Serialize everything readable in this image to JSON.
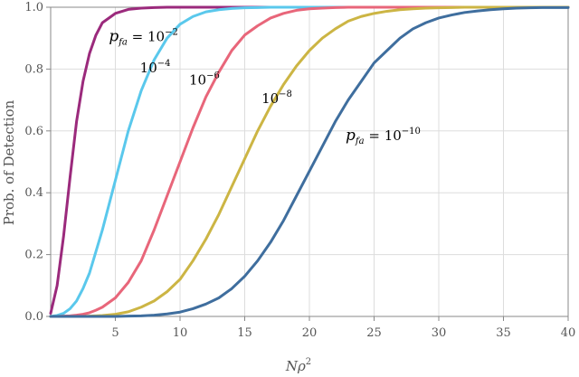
{
  "chart_data": {
    "type": "line",
    "title": "",
    "xlabel": "Nρ",
    "xlabel_sup": "2",
    "ylabel": "Prob. of Detection",
    "xlim": [
      0,
      40
    ],
    "ylim": [
      0,
      1.0
    ],
    "x_ticks": [
      "5",
      "10",
      "15",
      "20",
      "25",
      "30",
      "35",
      "40"
    ],
    "y_ticks": [
      "0.0",
      "0.2",
      "0.4",
      "0.6",
      "0.8",
      "1.0"
    ],
    "grid": true,
    "x": [
      0,
      0.5,
      1,
      1.5,
      2,
      2.5,
      3,
      3.5,
      4,
      5,
      6,
      7,
      8,
      9,
      10,
      11,
      12,
      13,
      14,
      15,
      16,
      17,
      18,
      19,
      20,
      21,
      22,
      23,
      24,
      25,
      26,
      27,
      28,
      29,
      30,
      31,
      32,
      33,
      34,
      35,
      36,
      37,
      38,
      39,
      40
    ],
    "series": [
      {
        "color": "#9b2a7c",
        "values": [
          0.01,
          0.1,
          0.26,
          0.45,
          0.63,
          0.76,
          0.85,
          0.91,
          0.95,
          0.98,
          0.993,
          0.997,
          0.999,
          1.0,
          1.0,
          1.0,
          1.0,
          1.0,
          1.0,
          1.0,
          1.0,
          1.0,
          1.0,
          1.0,
          1.0,
          1.0,
          1.0,
          1.0,
          1.0,
          1.0,
          1.0,
          1.0,
          1.0,
          1.0,
          1.0,
          1.0,
          1.0,
          1.0,
          1.0,
          1.0,
          1.0,
          1.0,
          1.0,
          1.0,
          1.0
        ]
      },
      {
        "color": "#5ac8ec",
        "values": [
          0.0001,
          0.003,
          0.01,
          0.025,
          0.05,
          0.09,
          0.14,
          0.21,
          0.28,
          0.44,
          0.6,
          0.73,
          0.83,
          0.9,
          0.945,
          0.97,
          0.985,
          0.992,
          0.996,
          0.998,
          0.999,
          1.0,
          1.0,
          1.0,
          1.0,
          1.0,
          1.0,
          1.0,
          1.0,
          1.0,
          1.0,
          1.0,
          1.0,
          1.0,
          1.0,
          1.0,
          1.0,
          1.0,
          1.0,
          1.0,
          1.0,
          1.0,
          1.0,
          1.0,
          1.0
        ]
      },
      {
        "color": "#e8667a",
        "values": [
          0.0,
          0.0,
          0.001,
          0.002,
          0.004,
          0.007,
          0.012,
          0.02,
          0.03,
          0.06,
          0.11,
          0.18,
          0.28,
          0.39,
          0.5,
          0.61,
          0.71,
          0.79,
          0.86,
          0.91,
          0.94,
          0.965,
          0.98,
          0.99,
          0.995,
          0.997,
          0.999,
          1.0,
          1.0,
          1.0,
          1.0,
          1.0,
          1.0,
          1.0,
          1.0,
          1.0,
          1.0,
          1.0,
          1.0,
          1.0,
          1.0,
          1.0,
          1.0,
          1.0,
          1.0
        ]
      },
      {
        "color": "#ccb544",
        "values": [
          0.0,
          0.0,
          0.0,
          0.0,
          0.0,
          0.0,
          0.001,
          0.002,
          0.003,
          0.007,
          0.015,
          0.03,
          0.05,
          0.08,
          0.12,
          0.18,
          0.25,
          0.33,
          0.42,
          0.51,
          0.6,
          0.68,
          0.75,
          0.81,
          0.86,
          0.9,
          0.93,
          0.955,
          0.97,
          0.98,
          0.987,
          0.992,
          0.995,
          0.997,
          0.998,
          0.999,
          1.0,
          1.0,
          1.0,
          1.0,
          1.0,
          1.0,
          1.0,
          1.0,
          1.0
        ]
      },
      {
        "color": "#3f6e9e",
        "values": [
          0.0,
          0.0,
          0.0,
          0.0,
          0.0,
          0.0,
          0.0,
          0.0,
          0.0,
          0.0,
          0.001,
          0.002,
          0.004,
          0.008,
          0.014,
          0.025,
          0.04,
          0.06,
          0.09,
          0.13,
          0.18,
          0.24,
          0.31,
          0.39,
          0.47,
          0.55,
          0.63,
          0.7,
          0.76,
          0.82,
          0.86,
          0.9,
          0.93,
          0.95,
          0.965,
          0.975,
          0.983,
          0.988,
          0.992,
          0.995,
          0.997,
          0.998,
          0.999,
          0.999,
          0.999
        ]
      }
    ],
    "annotations": [
      {
        "base": "p",
        "sub": "fa",
        "eq": " = 10",
        "exp": "−2",
        "at": [
          4.5,
          0.89
        ],
        "color": "#000000"
      },
      {
        "base": "",
        "sub": "",
        "eq": "10",
        "exp": "−4",
        "at": [
          6.9,
          0.79
        ],
        "color": "#000000"
      },
      {
        "base": "",
        "sub": "",
        "eq": "10",
        "exp": "−6",
        "at": [
          10.7,
          0.75
        ],
        "color": "#000000"
      },
      {
        "base": "",
        "sub": "",
        "eq": "10",
        "exp": "−8",
        "at": [
          16.3,
          0.69
        ],
        "color": "#000000"
      },
      {
        "base": "p",
        "sub": "fa",
        "eq": " = 10",
        "exp": "−10",
        "at": [
          22.8,
          0.57
        ],
        "color": "#000000"
      }
    ]
  }
}
